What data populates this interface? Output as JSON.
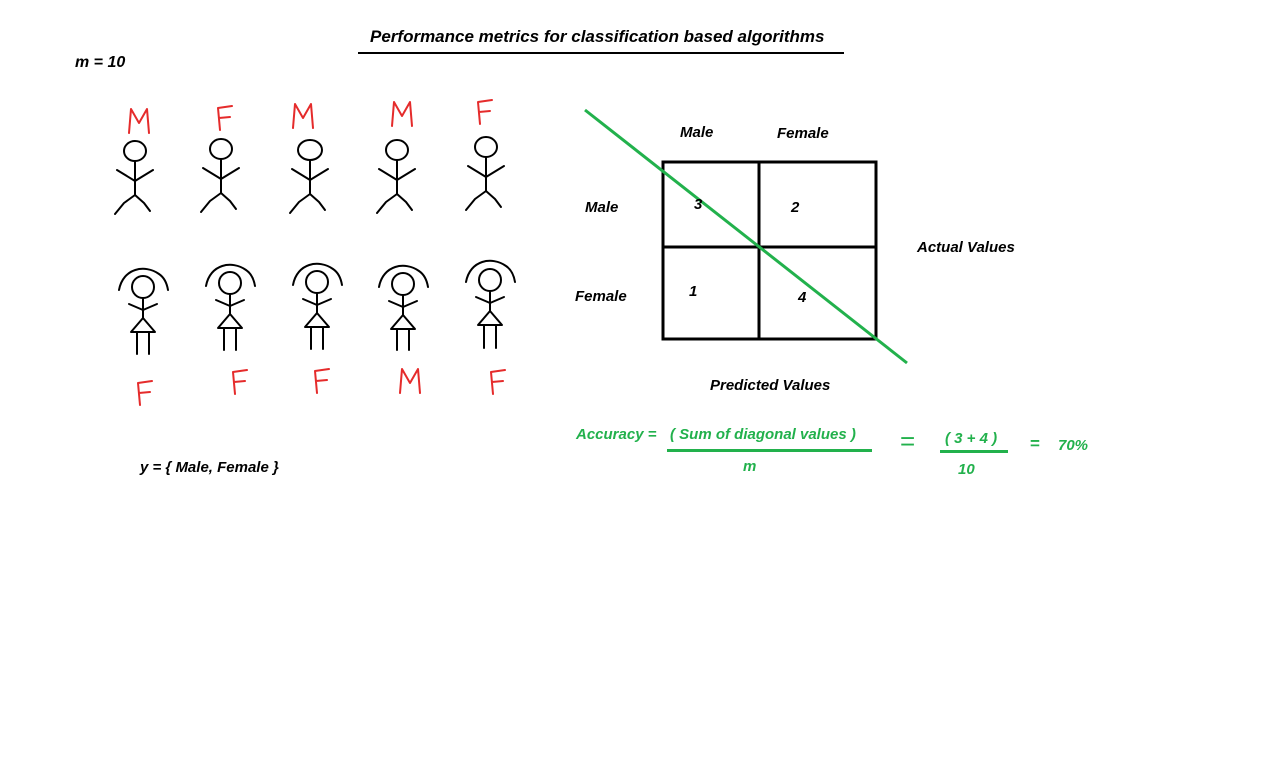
{
  "title": "Performance metrics for classification based algorithms",
  "sample_count": "m = 10",
  "label_set": "y = { Male, Female }",
  "top_row_labels": [
    "M",
    "F",
    "M",
    "M",
    "F"
  ],
  "bottom_row_labels": [
    "F",
    "F",
    "F",
    "M",
    "F"
  ],
  "matrix": {
    "column_headers": [
      "Male",
      "Female"
    ],
    "row_headers": [
      "Male",
      "Female"
    ],
    "cells": [
      [
        "3",
        "2"
      ],
      [
        "1",
        "4"
      ]
    ],
    "actual_axis_label": "Actual Values",
    "predicted_axis_label": "Predicted Values"
  },
  "accuracy": {
    "label": "Accuracy =",
    "numerator": "( Sum of diagonal values )",
    "denominator": "m",
    "equals": "=",
    "value_numerator": "( 3 + 4 )",
    "value_denominator": "10",
    "equals2": "=",
    "result": "70%"
  },
  "colors": {
    "label_red": "#e52b2b",
    "accent_green": "#22b14c",
    "ink": "#000000"
  }
}
